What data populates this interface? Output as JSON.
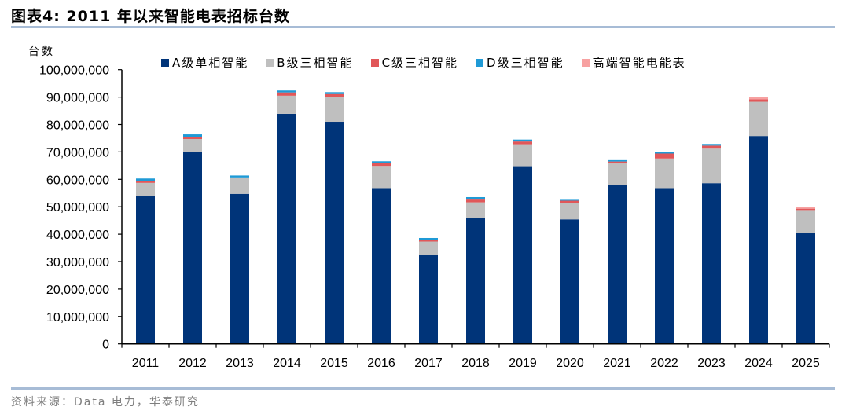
{
  "header": {
    "title": "图表4:  2011 年以来智能电表招标台数"
  },
  "footer": {
    "source": "资料来源：Data 电力，华泰研究"
  },
  "colors": {
    "A": "#003479",
    "B": "#bfbfbf",
    "C": "#e15759",
    "D": "#1f9ad6",
    "HighEnd": "#f7a1a1",
    "rule": "#a7bcd6"
  },
  "chart_data": {
    "type": "bar",
    "stacked": true,
    "title": "2011 年以来智能电表招标台数",
    "xlabel": "",
    "ylabel": "台数",
    "ylim": [
      0,
      100000000
    ],
    "yticks": [
      0,
      10000000,
      20000000,
      30000000,
      40000000,
      50000000,
      60000000,
      70000000,
      80000000,
      90000000,
      100000000
    ],
    "ytick_labels": [
      "0",
      "10,000,000",
      "20,000,000",
      "30,000,000",
      "40,000,000",
      "50,000,000",
      "60,000,000",
      "70,000,000",
      "80,000,000",
      "90,000,000",
      "100,000,000"
    ],
    "grid": false,
    "legend_position": "top",
    "categories": [
      "2011",
      "2012",
      "2013",
      "2014",
      "2015",
      "2016",
      "2017",
      "2018",
      "2019",
      "2020",
      "2021",
      "2022",
      "2023",
      "2024",
      "2025"
    ],
    "series": [
      {
        "name": "A级单相智能",
        "color": "#003479",
        "values": [
          54000000,
          70000000,
          54700000,
          83900000,
          81000000,
          56800000,
          32300000,
          46000000,
          64800000,
          45400000,
          58000000,
          56800000,
          58600000,
          75800000,
          40400000
        ]
      },
      {
        "name": "B级三相智能",
        "color": "#bfbfbf",
        "values": [
          4700000,
          4700000,
          6000000,
          6600000,
          9100000,
          8100000,
          5000000,
          5600000,
          8000000,
          6000000,
          7800000,
          10800000,
          12600000,
          12500000,
          8400000
        ]
      },
      {
        "name": "C级三相智能",
        "color": "#e15759",
        "values": [
          800000,
          700000,
          0,
          1200000,
          1000000,
          1200000,
          700000,
          1300000,
          1000000,
          800000,
          700000,
          1800000,
          1100000,
          900000,
          500000
        ]
      },
      {
        "name": "D级三相智能",
        "color": "#1f9ad6",
        "values": [
          800000,
          1000000,
          700000,
          700000,
          700000,
          500000,
          600000,
          600000,
          700000,
          600000,
          500000,
          600000,
          600000,
          0,
          0
        ]
      },
      {
        "name": "高端智能电能表",
        "color": "#f7a1a1",
        "values": [
          0,
          0,
          0,
          0,
          0,
          0,
          0,
          0,
          0,
          0,
          0,
          0,
          0,
          900000,
          700000
        ]
      }
    ]
  }
}
